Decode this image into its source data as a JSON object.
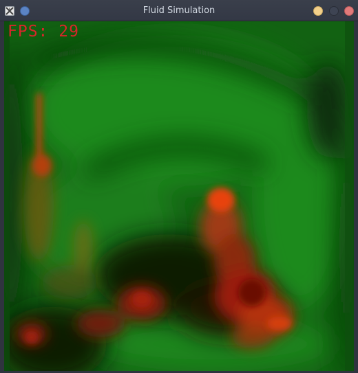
{
  "window": {
    "title": "Fluid Simulation"
  },
  "overlay": {
    "fps_label": "FPS:",
    "fps_value": "29"
  },
  "colors": {
    "fluid_green": "#1a7a1a",
    "dye_red": "#d42a10",
    "dye_orange": "#e8520a",
    "fps_text": "#d8262a",
    "titlebar": "#363b47",
    "title_text": "#d3dae3"
  }
}
